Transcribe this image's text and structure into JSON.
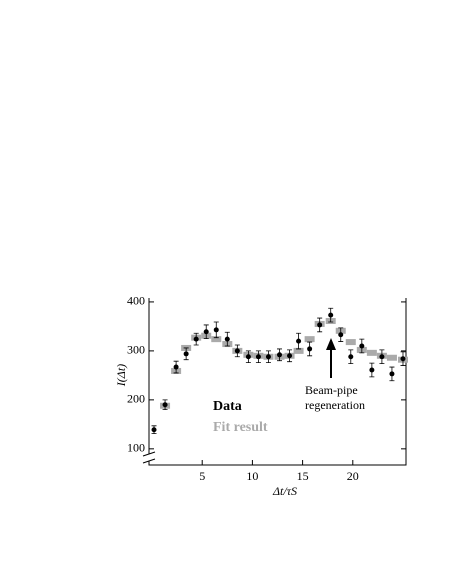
{
  "chart_data": {
    "type": "scatter",
    "xlabel": "Δt/τS",
    "ylabel": "I(Δt)",
    "x": [
      0.2,
      1.3,
      2.4,
      3.4,
      4.4,
      5.4,
      6.4,
      7.5,
      8.5,
      9.6,
      10.6,
      11.6,
      12.7,
      13.7,
      14.6,
      15.7,
      16.7,
      17.8,
      18.8,
      19.8,
      20.9,
      21.9,
      22.9,
      23.9,
      25.0
    ],
    "series": [
      {
        "name": "Data",
        "color": "#000000",
        "values": [
          139,
          190,
          267,
          294,
          324,
          339,
          343,
          324,
          300,
          288,
          288,
          288,
          292,
          290,
          320,
          304,
          353,
          373,
          333,
          288,
          310,
          261,
          288,
          253,
          284
        ],
        "errors": [
          8,
          10,
          12,
          12,
          12,
          14,
          16,
          14,
          12,
          12,
          12,
          12,
          12,
          12,
          16,
          14,
          14,
          14,
          14,
          14,
          14,
          14,
          14,
          14,
          14
        ]
      },
      {
        "name": "Fit result",
        "color": "#aaaaaa",
        "values": [
          null,
          188,
          259,
          306,
          327,
          331,
          324,
          314,
          300,
          292,
          290,
          288,
          288,
          290,
          300,
          324,
          355,
          361,
          341,
          318,
          302,
          296,
          290,
          286,
          282
        ]
      }
    ],
    "annotation": [
      "Beam-pipe",
      "regeneration"
    ],
    "xlim": [
      -0.3,
      25.3
    ],
    "ylim": [
      67,
      408
    ],
    "xticks": [
      5,
      10,
      15,
      20
    ],
    "yticks": [
      100,
      200,
      300,
      400
    ]
  }
}
